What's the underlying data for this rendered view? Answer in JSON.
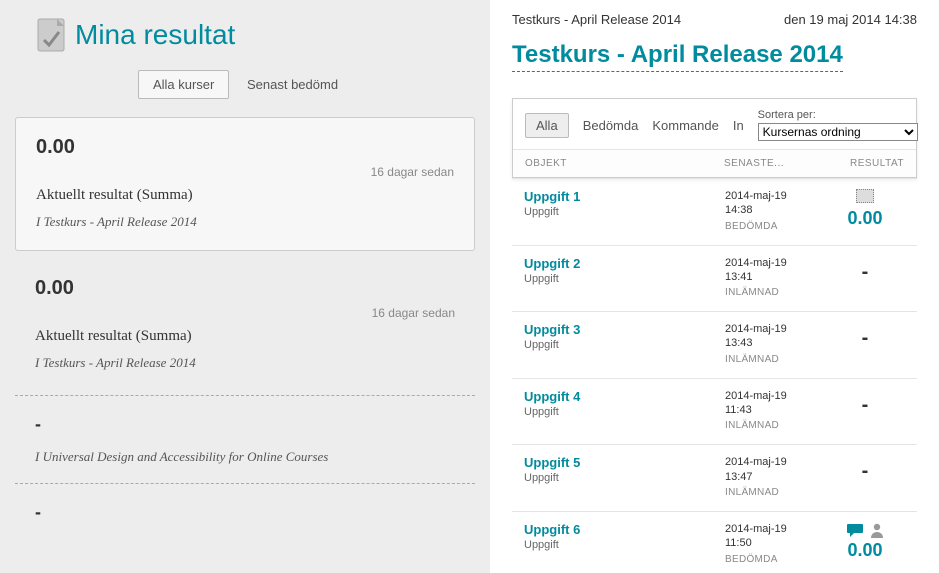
{
  "colors": {
    "accent": "#008b9e",
    "bg_left": "#ededed",
    "card_bg": "#f7f7f7",
    "border": "#ccc",
    "text": "#333",
    "muted": "#888"
  },
  "left": {
    "title": "Mina resultat",
    "tabs": {
      "all": "Alla kurser",
      "recent": "Senast bedömd"
    },
    "card1": {
      "score": "0.00",
      "time": "16 dagar sedan",
      "line1": "Aktuellt resultat (Summa)",
      "line2_prefix": "I ",
      "line2_course": "Testkurs - April Release 2014"
    },
    "block2": {
      "score": "0.00",
      "time": "16 dagar sedan",
      "line1": "Aktuellt resultat (Summa)",
      "line2_prefix": "I ",
      "line2_course": "Testkurs - April Release 2014"
    },
    "block3": {
      "dash": "-",
      "line2_prefix": "I ",
      "line2_course": "Universal Design and Accessibility for Online Courses"
    },
    "block4": {
      "dash": "-"
    }
  },
  "right": {
    "breadcrumb": "Testkurs - April Release 2014",
    "timestamp": "den 19 maj 2014 14:38",
    "heading": "Testkurs - April Release 2014",
    "filters": {
      "all": "Alla",
      "graded": "Bedömda",
      "upcoming": "Kommande",
      "sub_prefix": "In"
    },
    "sort_label": "Sortera per:",
    "sort_value": "Kursernas ordning",
    "columns": {
      "c1": "OBJEKT",
      "c2": "SENASTE...",
      "c3": "RESULTAT"
    },
    "items": [
      {
        "title": "Uppgift 1",
        "type": "Uppgift",
        "date": "2014-maj-19 14:38",
        "status": "BEDÖMDA",
        "result_kind": "greyscore",
        "score": "0.00"
      },
      {
        "title": "Uppgift 2",
        "type": "Uppgift",
        "date": "2014-maj-19 13:41",
        "status": "INLÄMNAD",
        "result_kind": "dash"
      },
      {
        "title": "Uppgift 3",
        "type": "Uppgift",
        "date": "2014-maj-19 13:43",
        "status": "INLÄMNAD",
        "result_kind": "dash"
      },
      {
        "title": "Uppgift 4",
        "type": "Uppgift",
        "date": "2014-maj-19 11:43",
        "status": "INLÄMNAD",
        "result_kind": "dash"
      },
      {
        "title": "Uppgift 5",
        "type": "Uppgift",
        "date": "2014-maj-19 13:47",
        "status": "INLÄMNAD",
        "result_kind": "dash"
      },
      {
        "title": "Uppgift 6",
        "type": "Uppgift",
        "date": "2014-maj-19 11:50",
        "status": "BEDÖMDA",
        "result_kind": "iconscore",
        "score": "0.00"
      }
    ]
  }
}
